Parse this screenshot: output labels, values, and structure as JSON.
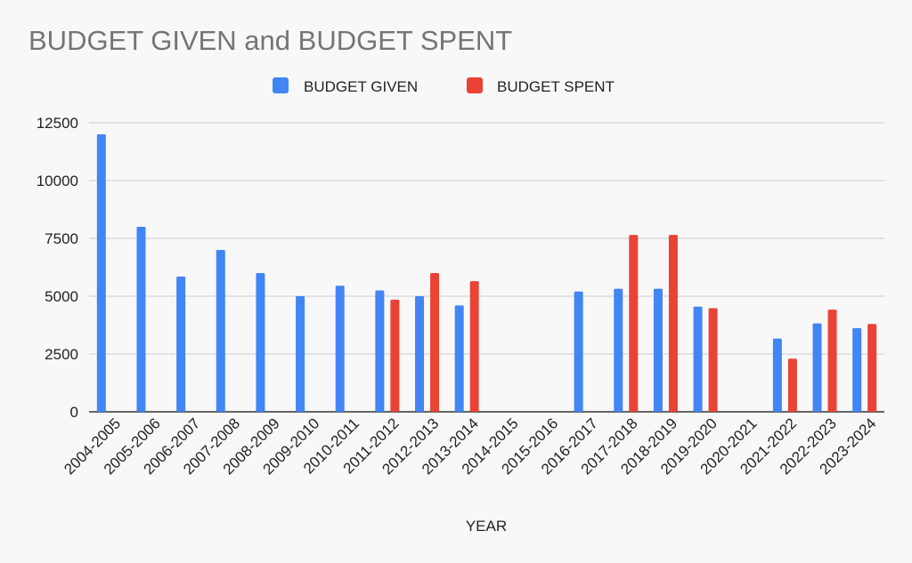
{
  "chart_data": {
    "type": "bar",
    "title": "BUDGET GIVEN and BUDGET SPENT",
    "xlabel": "YEAR",
    "ylabel": "",
    "ylim": [
      0,
      12500
    ],
    "yticks": [
      "0",
      "2500",
      "5000",
      "7500",
      "10000",
      "12500"
    ],
    "grid": true,
    "legend_position": "top-center",
    "categories": [
      "2004-2005",
      "2005-2006",
      "2006-2007",
      "2007-2008",
      "2008-2009",
      "2009-2010",
      "2010-2011",
      "2011-2012",
      "2012-2013",
      "2013-2014",
      "2014-2015",
      "2015-2016",
      "2016-2017",
      "2017-2018",
      "2018-2019",
      "2019-2020",
      "2020-2021",
      "2021-2022",
      "2022-2023",
      "2023-2024"
    ],
    "series": [
      {
        "name": "BUDGET GIVEN",
        "color": "#4285f4",
        "values": [
          12000,
          8000,
          5850,
          7000,
          6000,
          5000,
          5450,
          5250,
          5000,
          4600,
          null,
          null,
          5200,
          5320,
          5320,
          4550,
          null,
          3170,
          3820,
          3620
        ]
      },
      {
        "name": "BUDGET SPENT",
        "color": "#ea4335",
        "values": [
          null,
          null,
          null,
          null,
          null,
          null,
          null,
          4850,
          6000,
          5650,
          null,
          null,
          null,
          7650,
          7650,
          4480,
          null,
          2300,
          4420,
          3800
        ]
      }
    ]
  }
}
